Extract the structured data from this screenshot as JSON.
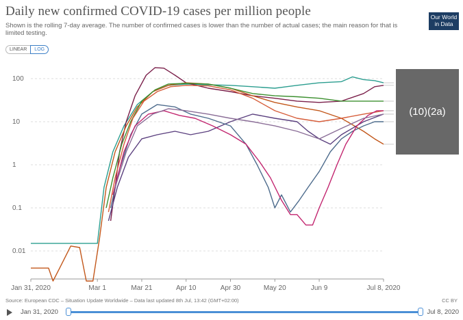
{
  "title": "Daily new confirmed COVID-19 cases per million people",
  "subtitle": "Shown is the rolling 7-day average. The number of confirmed cases is lower than the number of actual cases; the main reason for that is limited testing.",
  "logo": [
    "Our World",
    "in Data"
  ],
  "scale_toggle": {
    "linear": "LINEAR",
    "log": "LOG",
    "active": "LOG"
  },
  "overlay_text": "(10)(2a)",
  "footer": {
    "source": "Source: European CDC – Situation Update Worldwide – Data last updated 8th Jul, 13:42 (GMT+02:00)",
    "license": "CC BY"
  },
  "timeline": {
    "start": "Jan 31, 2020",
    "end": "Jul 8, 2020"
  },
  "chart_data": {
    "type": "line",
    "yscale": "log",
    "ylim": [
      0.002,
      200
    ],
    "y_ticks": [
      {
        "label": "100",
        "value": 100
      },
      {
        "label": "10",
        "value": 10
      },
      {
        "label": "1",
        "value": 1
      },
      {
        "label": "0.1",
        "value": 0.1
      },
      {
        "label": "0.01",
        "value": 0.01
      }
    ],
    "x_ticks": [
      {
        "label": "Jan 31, 2020",
        "day": 0
      },
      {
        "label": "Mar 1",
        "day": 30
      },
      {
        "label": "Mar 21",
        "day": 50
      },
      {
        "label": "Apr 10",
        "day": 70
      },
      {
        "label": "Apr 30",
        "day": 90
      },
      {
        "label": "May 20",
        "day": 110
      },
      {
        "label": "Jun 9",
        "day": 130
      },
      {
        "label": "Jul 8, 2020",
        "day": 159
      }
    ],
    "xlim": [
      0,
      159
    ],
    "series": [
      {
        "color": "#2a9d8f",
        "points": [
          [
            0,
            0.015
          ],
          [
            30,
            0.015
          ],
          [
            33,
            0.3
          ],
          [
            37,
            2
          ],
          [
            42,
            8
          ],
          [
            48,
            25
          ],
          [
            55,
            50
          ],
          [
            62,
            70
          ],
          [
            70,
            75
          ],
          [
            80,
            72
          ],
          [
            90,
            70
          ],
          [
            100,
            65
          ],
          [
            110,
            60
          ],
          [
            120,
            70
          ],
          [
            130,
            80
          ],
          [
            140,
            85
          ],
          [
            145,
            110
          ],
          [
            150,
            95
          ],
          [
            155,
            90
          ],
          [
            159,
            80
          ]
        ]
      },
      {
        "color": "#7a1f4a",
        "points": [
          [
            36,
            0.05
          ],
          [
            38,
            0.3
          ],
          [
            40,
            2
          ],
          [
            43,
            10
          ],
          [
            47,
            40
          ],
          [
            52,
            120
          ],
          [
            56,
            180
          ],
          [
            60,
            175
          ],
          [
            65,
            120
          ],
          [
            70,
            80
          ],
          [
            80,
            60
          ],
          [
            90,
            50
          ],
          [
            100,
            40
          ],
          [
            110,
            35
          ],
          [
            120,
            30
          ],
          [
            130,
            28
          ],
          [
            140,
            30
          ],
          [
            150,
            45
          ],
          [
            155,
            65
          ],
          [
            159,
            70
          ]
        ]
      },
      {
        "color": "#c2571a",
        "points": [
          [
            0,
            0.004
          ],
          [
            8,
            0.004
          ],
          [
            10,
            0.002
          ],
          [
            13,
            0.004
          ],
          [
            18,
            0.013
          ],
          [
            22,
            0.012
          ],
          [
            25,
            0.002
          ],
          [
            28,
            0.002
          ],
          [
            31,
            0.02
          ],
          [
            34,
            0.3
          ],
          [
            38,
            2
          ],
          [
            43,
            8
          ],
          [
            48,
            22
          ],
          [
            55,
            50
          ],
          [
            62,
            70
          ],
          [
            70,
            80
          ],
          [
            80,
            75
          ],
          [
            90,
            60
          ],
          [
            100,
            40
          ],
          [
            110,
            28
          ],
          [
            120,
            22
          ],
          [
            130,
            18
          ],
          [
            140,
            12
          ],
          [
            150,
            6
          ],
          [
            155,
            4
          ],
          [
            159,
            3
          ]
        ]
      },
      {
        "color": "#3b8f2e",
        "points": [
          [
            34,
            0.1
          ],
          [
            37,
            0.5
          ],
          [
            41,
            3
          ],
          [
            45,
            10
          ],
          [
            50,
            30
          ],
          [
            56,
            55
          ],
          [
            62,
            75
          ],
          [
            70,
            78
          ],
          [
            80,
            75
          ],
          [
            90,
            60
          ],
          [
            100,
            45
          ],
          [
            110,
            40
          ],
          [
            120,
            38
          ],
          [
            130,
            35
          ],
          [
            140,
            30
          ],
          [
            150,
            30
          ],
          [
            159,
            30
          ]
        ]
      },
      {
        "color": "#d65d3a",
        "points": [
          [
            35,
            0.08
          ],
          [
            38,
            0.5
          ],
          [
            42,
            3
          ],
          [
            46,
            12
          ],
          [
            51,
            30
          ],
          [
            57,
            50
          ],
          [
            63,
            65
          ],
          [
            70,
            70
          ],
          [
            80,
            68
          ],
          [
            90,
            55
          ],
          [
            100,
            35
          ],
          [
            110,
            18
          ],
          [
            120,
            12
          ],
          [
            130,
            10
          ],
          [
            140,
            12
          ],
          [
            150,
            15
          ],
          [
            159,
            18
          ]
        ]
      },
      {
        "color": "#5a3f7e",
        "points": [
          [
            35,
            0.05
          ],
          [
            39,
            0.3
          ],
          [
            44,
            1.5
          ],
          [
            50,
            4
          ],
          [
            57,
            5
          ],
          [
            65,
            6
          ],
          [
            72,
            5
          ],
          [
            80,
            6
          ],
          [
            90,
            10
          ],
          [
            100,
            15
          ],
          [
            110,
            12
          ],
          [
            120,
            10
          ],
          [
            125,
            6
          ],
          [
            130,
            4
          ],
          [
            135,
            3
          ],
          [
            140,
            5
          ],
          [
            150,
            10
          ],
          [
            159,
            15
          ]
        ]
      },
      {
        "color": "#4d6b8c",
        "points": [
          [
            36,
            0.1
          ],
          [
            40,
            0.8
          ],
          [
            45,
            5
          ],
          [
            50,
            15
          ],
          [
            57,
            25
          ],
          [
            65,
            22
          ],
          [
            72,
            15
          ],
          [
            80,
            12
          ],
          [
            90,
            8
          ],
          [
            97,
            3
          ],
          [
            102,
            1
          ],
          [
            107,
            0.3
          ],
          [
            110,
            0.1
          ],
          [
            113,
            0.2
          ],
          [
            117,
            0.08
          ],
          [
            121,
            0.15
          ],
          [
            125,
            0.3
          ],
          [
            130,
            0.7
          ],
          [
            135,
            2
          ],
          [
            140,
            4
          ],
          [
            145,
            6
          ],
          [
            150,
            8
          ],
          [
            155,
            10
          ],
          [
            159,
            10
          ]
        ]
      },
      {
        "color": "#c2256f",
        "points": [
          [
            37,
            0.2
          ],
          [
            42,
            2
          ],
          [
            47,
            8
          ],
          [
            53,
            15
          ],
          [
            60,
            18
          ],
          [
            67,
            14
          ],
          [
            74,
            12
          ],
          [
            82,
            8
          ],
          [
            90,
            5
          ],
          [
            97,
            3
          ],
          [
            103,
            1.2
          ],
          [
            108,
            0.5
          ],
          [
            113,
            0.15
          ],
          [
            117,
            0.07
          ],
          [
            120,
            0.07
          ],
          [
            124,
            0.04
          ],
          [
            127,
            0.04
          ],
          [
            130,
            0.1
          ],
          [
            134,
            0.3
          ],
          [
            138,
            1
          ],
          [
            142,
            3
          ],
          [
            147,
            8
          ],
          [
            152,
            14
          ],
          [
            156,
            18
          ],
          [
            159,
            18
          ]
        ]
      },
      {
        "color": "#8a6d97",
        "points": [
          [
            38,
            0.3
          ],
          [
            43,
            2
          ],
          [
            48,
            8
          ],
          [
            55,
            15
          ],
          [
            62,
            20
          ],
          [
            70,
            18
          ],
          [
            80,
            15
          ],
          [
            90,
            12
          ],
          [
            100,
            10
          ],
          [
            110,
            8
          ],
          [
            120,
            6
          ],
          [
            130,
            4
          ],
          [
            140,
            7
          ],
          [
            150,
            12
          ],
          [
            159,
            15
          ]
        ]
      }
    ]
  }
}
